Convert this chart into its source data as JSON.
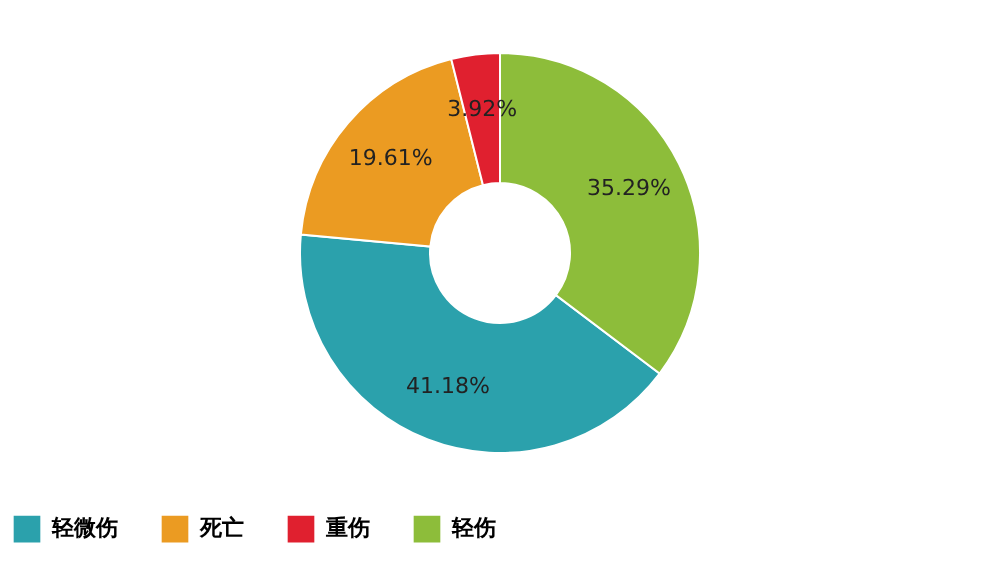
{
  "chart_data": {
    "type": "donut",
    "categories": [
      "轻微伤",
      "死亡",
      "重伤",
      "轻伤"
    ],
    "values": [
      41.18,
      19.61,
      3.92,
      35.29
    ],
    "colors": [
      "#2ba1ac",
      "#eb9b22",
      "#e0202f",
      "#8dbd3a"
    ],
    "value_labels": [
      "41.18%",
      "19.61%",
      "3.92%",
      "35.29%"
    ],
    "legend": "bottom"
  }
}
